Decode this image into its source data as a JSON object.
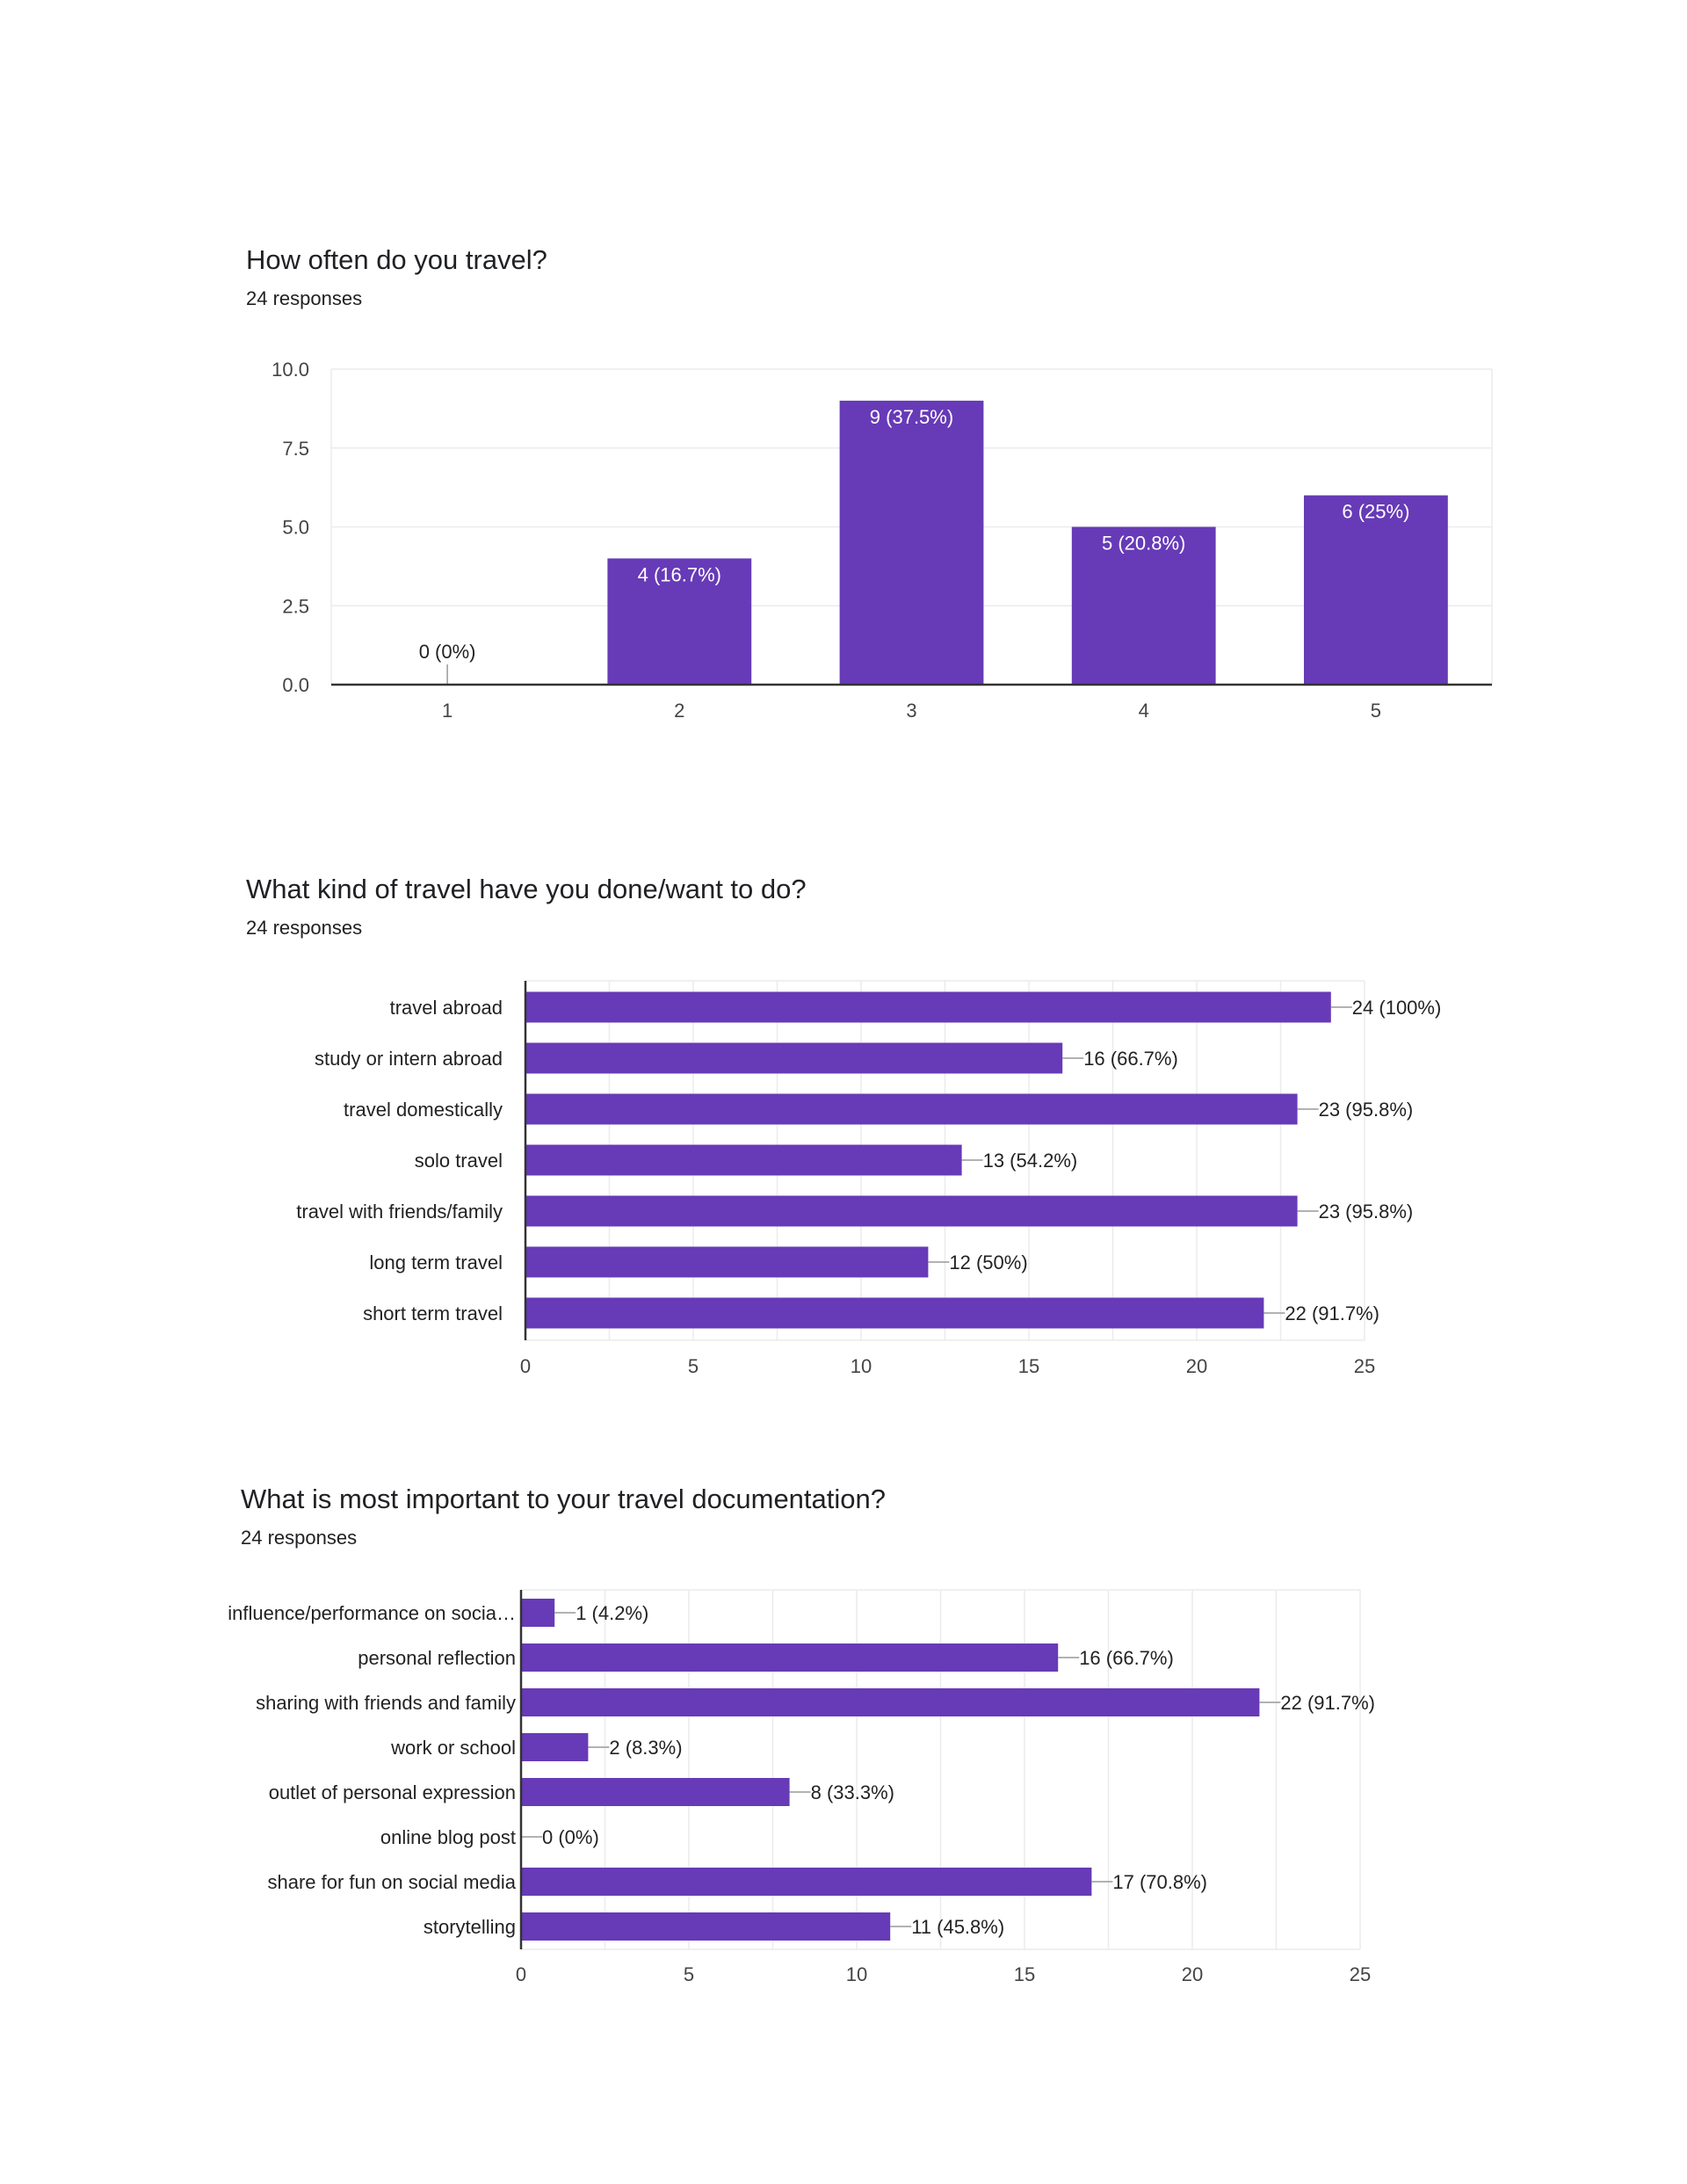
{
  "colors": {
    "bar": "#673ab7",
    "grid": "#ebebeb",
    "axis": "#333333",
    "leader": "#999999"
  },
  "chart_data": [
    {
      "type": "bar",
      "orientation": "vertical",
      "title": "How often do you travel?",
      "subtitle": "24 responses",
      "categories": [
        "1",
        "2",
        "3",
        "4",
        "5"
      ],
      "values": [
        0,
        4,
        9,
        5,
        6
      ],
      "data_labels": [
        "0 (0%)",
        "4 (16.7%)",
        "9 (37.5%)",
        "5 (20.8%)",
        "6 (25%)"
      ],
      "yticks": [
        "0.0",
        "2.5",
        "5.0",
        "7.5",
        "10.0"
      ],
      "ylim": [
        0,
        10
      ],
      "xlabel": "",
      "ylabel": "",
      "grid": true,
      "legend": "none"
    },
    {
      "type": "bar",
      "orientation": "horizontal",
      "title": "What kind of travel have you done/want to do?",
      "subtitle": "24 responses",
      "categories": [
        "travel abroad",
        "study or intern abroad",
        "travel domestically",
        "solo travel",
        "travel with friends/family",
        "long term travel",
        "short term travel"
      ],
      "values": [
        24,
        16,
        23,
        13,
        23,
        12,
        22
      ],
      "data_labels": [
        "24 (100%)",
        "16 (66.7%)",
        "23 (95.8%)",
        "13 (54.2%)",
        "23 (95.8%)",
        "12 (50%)",
        "22 (91.7%)"
      ],
      "xticks": [
        "0",
        "5",
        "10",
        "15",
        "20",
        "25"
      ],
      "xlim": [
        0,
        25
      ],
      "xlabel": "",
      "ylabel": "",
      "grid": true,
      "legend": "none"
    },
    {
      "type": "bar",
      "orientation": "horizontal",
      "title": "What is most important to your travel documentation?",
      "subtitle": "24 responses",
      "categories": [
        "influence/performance on socia…",
        "personal reflection",
        "sharing with friends and family",
        "work or school",
        "outlet of personal expression",
        "online blog post",
        "share for fun on social media",
        "storytelling"
      ],
      "values": [
        1,
        16,
        22,
        2,
        8,
        0,
        17,
        11
      ],
      "data_labels": [
        "1 (4.2%)",
        "16 (66.7%)",
        "22 (91.7%)",
        "2 (8.3%)",
        "8 (33.3%)",
        "0 (0%)",
        "17 (70.8%)",
        "11 (45.8%)"
      ],
      "xticks": [
        "0",
        "5",
        "10",
        "15",
        "20",
        "25"
      ],
      "xlim": [
        0,
        25
      ],
      "xlabel": "",
      "ylabel": "",
      "grid": true,
      "legend": "none"
    }
  ]
}
